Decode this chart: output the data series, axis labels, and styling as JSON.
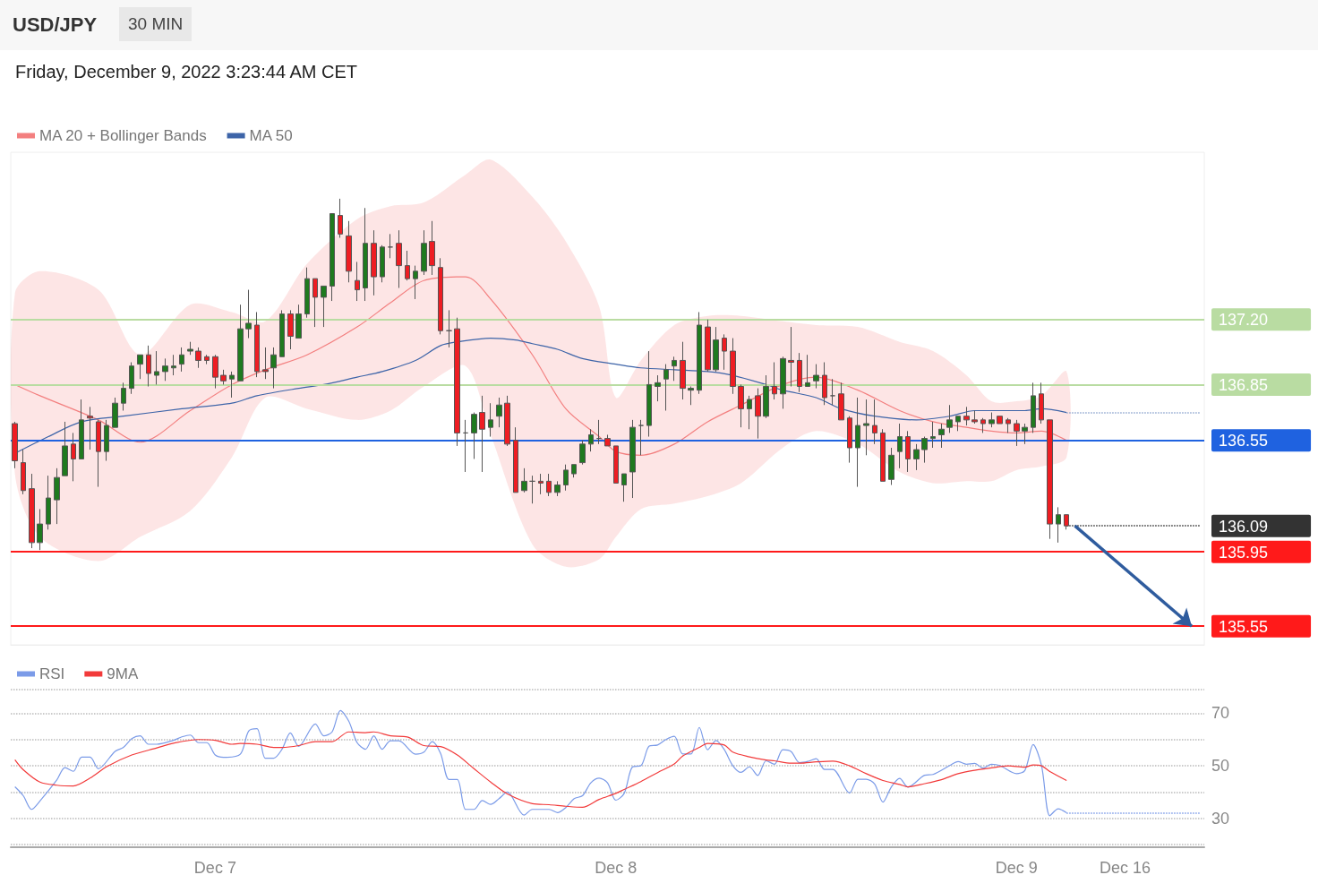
{
  "chart_data": [
    {
      "type": "candlestick",
      "title": "USD/JPY",
      "subtitle": "Friday, December 9, 2022 3:23:44 AM CET",
      "annotations": [
        "30 MIN"
      ],
      "categories": [
        null,
        null,
        null,
        null,
        null,
        null,
        null,
        null,
        null,
        null,
        null,
        null,
        null,
        null,
        null,
        null,
        null,
        null,
        null,
        null,
        null,
        null,
        null,
        null,
        null,
        null,
        null,
        null,
        null,
        null,
        null,
        null,
        null,
        null,
        null,
        null,
        null,
        null,
        null,
        null,
        null,
        null,
        null,
        null,
        null,
        null,
        null,
        null,
        null,
        null,
        null,
        null,
        null,
        null,
        null,
        null,
        null,
        null,
        null,
        null,
        null,
        null,
        null,
        null,
        null,
        null,
        null,
        null,
        null,
        null,
        null,
        null,
        null,
        null,
        null,
        null,
        null,
        null,
        null,
        null,
        null,
        null,
        null,
        null,
        null,
        null,
        null,
        null,
        null,
        null,
        null,
        null,
        null,
        null,
        null,
        null,
        null,
        null,
        null,
        null,
        null,
        null,
        null,
        null,
        null,
        null,
        null,
        null,
        null,
        null,
        null,
        null,
        null,
        null,
        null,
        null,
        null,
        null,
        null,
        null,
        null,
        null,
        null,
        null,
        null,
        null,
        null,
        null,
        null,
        null,
        null,
        null,
        null,
        null,
        null,
        null,
        null,
        null,
        null,
        null,
        null,
        null,
        null
      ],
      "ohlc": [
        [
          136.64,
          136.65,
          136.4,
          136.44
        ],
        [
          136.43,
          136.5,
          136.26,
          136.28
        ],
        [
          136.29,
          136.37,
          135.97,
          136.0
        ],
        [
          136.0,
          136.18,
          135.96,
          136.1
        ],
        [
          136.1,
          136.36,
          136.07,
          136.24
        ],
        [
          136.23,
          136.4,
          136.1,
          136.35
        ],
        [
          136.36,
          136.65,
          136.36,
          136.52
        ],
        [
          136.53,
          136.59,
          136.33,
          136.45
        ],
        [
          136.45,
          136.77,
          136.45,
          136.66
        ],
        [
          136.68,
          136.73,
          136.5,
          136.67
        ],
        [
          136.65,
          136.66,
          136.3,
          136.49
        ],
        [
          136.49,
          136.66,
          136.44,
          136.63
        ],
        [
          136.62,
          136.78,
          136.62,
          136.75
        ],
        [
          136.75,
          136.86,
          136.71,
          136.83
        ],
        [
          136.83,
          136.97,
          136.8,
          136.95
        ],
        [
          136.96,
          137.01,
          136.88,
          137.01
        ],
        [
          137.01,
          137.06,
          136.84,
          136.91
        ],
        [
          136.9,
          137.03,
          136.85,
          136.92
        ],
        [
          136.92,
          136.99,
          136.87,
          136.95
        ],
        [
          136.94,
          137.01,
          136.9,
          136.95
        ],
        [
          136.96,
          137.05,
          136.92,
          137.01
        ],
        [
          137.03,
          137.08,
          137.01,
          137.04
        ],
        [
          137.03,
          137.05,
          136.94,
          136.98
        ],
        [
          137.0,
          137.01,
          136.96,
          136.98
        ],
        [
          137.0,
          137.01,
          136.83,
          136.89
        ],
        [
          136.9,
          136.93,
          136.85,
          136.87
        ],
        [
          136.88,
          136.92,
          136.78,
          136.9
        ],
        [
          136.87,
          137.28,
          136.87,
          137.15
        ],
        [
          137.15,
          137.36,
          137.1,
          137.18
        ],
        [
          137.17,
          137.24,
          136.89,
          136.92
        ],
        [
          136.93,
          137.05,
          136.88,
          136.92
        ],
        [
          136.94,
          137.05,
          136.83,
          137.01
        ],
        [
          137.0,
          137.25,
          137.0,
          137.23
        ],
        [
          137.23,
          137.25,
          137.04,
          137.11
        ],
        [
          137.1,
          137.28,
          137.1,
          137.23
        ],
        [
          137.23,
          137.48,
          137.21,
          137.42
        ],
        [
          137.42,
          137.42,
          137.16,
          137.32
        ],
        [
          137.32,
          137.38,
          137.16,
          137.38
        ],
        [
          137.38,
          137.77,
          137.3,
          137.77
        ],
        [
          137.76,
          137.85,
          137.64,
          137.66
        ],
        [
          137.65,
          137.73,
          137.4,
          137.46
        ],
        [
          137.41,
          137.51,
          137.3,
          137.36
        ],
        [
          137.37,
          137.8,
          137.3,
          137.61
        ],
        [
          137.61,
          137.68,
          137.33,
          137.43
        ],
        [
          137.43,
          137.6,
          137.4,
          137.59
        ],
        [
          137.59,
          137.66,
          137.53,
          137.59
        ],
        [
          137.61,
          137.68,
          137.37,
          137.49
        ],
        [
          137.49,
          137.57,
          137.41,
          137.42
        ],
        [
          137.42,
          137.49,
          137.31,
          137.46
        ],
        [
          137.46,
          137.68,
          137.44,
          137.61
        ],
        [
          137.62,
          137.73,
          137.44,
          137.49
        ],
        [
          137.48,
          137.53,
          137.12,
          137.14
        ],
        [
          137.14,
          137.25,
          137.05,
          137.14
        ],
        [
          137.15,
          137.21,
          136.52,
          136.59
        ],
        [
          136.59,
          136.66,
          136.38,
          136.59
        ],
        [
          136.59,
          136.7,
          136.45,
          136.69
        ],
        [
          136.7,
          136.79,
          136.38,
          136.61
        ],
        [
          136.62,
          136.75,
          136.57,
          136.66
        ],
        [
          136.68,
          136.78,
          136.62,
          136.74
        ],
        [
          136.75,
          136.79,
          136.52,
          136.53
        ],
        [
          136.55,
          136.62,
          136.27,
          136.27
        ],
        [
          136.28,
          136.4,
          136.27,
          136.33
        ],
        [
          136.33,
          136.36,
          136.21,
          136.33
        ],
        [
          136.33,
          136.37,
          136.26,
          136.32
        ],
        [
          136.33,
          136.37,
          136.25,
          136.27
        ],
        [
          136.27,
          136.33,
          136.25,
          136.31
        ],
        [
          136.31,
          136.42,
          136.28,
          136.39
        ],
        [
          136.37,
          136.42,
          136.35,
          136.42
        ],
        [
          136.43,
          136.55,
          136.42,
          136.53
        ],
        [
          136.53,
          136.61,
          136.49,
          136.58
        ],
        [
          136.56,
          136.66,
          136.53,
          136.56
        ],
        [
          136.56,
          136.58,
          136.52,
          136.52
        ],
        [
          136.52,
          136.52,
          136.32,
          136.32
        ],
        [
          136.31,
          136.37,
          136.22,
          136.37
        ],
        [
          136.38,
          136.66,
          136.24,
          136.62
        ],
        [
          136.63,
          136.66,
          136.47,
          136.63
        ],
        [
          136.63,
          137.03,
          136.57,
          136.85
        ],
        [
          136.84,
          136.9,
          136.76,
          136.86
        ],
        [
          136.88,
          136.96,
          136.71,
          136.93
        ],
        [
          136.95,
          137.0,
          136.87,
          136.98
        ],
        [
          136.98,
          137.08,
          136.77,
          136.83
        ],
        [
          136.82,
          136.84,
          136.74,
          136.83
        ],
        [
          136.82,
          137.24,
          136.8,
          137.17
        ],
        [
          137.16,
          137.2,
          136.92,
          136.93
        ],
        [
          136.93,
          137.16,
          136.92,
          137.09
        ],
        [
          137.1,
          137.12,
          136.93,
          137.03
        ],
        [
          137.03,
          137.1,
          136.8,
          136.84
        ],
        [
          136.84,
          136.85,
          136.62,
          136.72
        ],
        [
          136.72,
          136.79,
          136.61,
          136.77
        ],
        [
          136.79,
          136.83,
          136.56,
          136.68
        ],
        [
          136.68,
          136.9,
          136.67,
          136.84
        ],
        [
          136.84,
          136.97,
          136.77,
          136.8
        ],
        [
          136.8,
          137.0,
          136.72,
          136.99
        ],
        [
          136.98,
          137.16,
          136.84,
          136.97
        ],
        [
          136.98,
          137.02,
          136.81,
          136.84
        ],
        [
          136.84,
          137.01,
          136.84,
          136.86
        ],
        [
          136.87,
          136.96,
          136.83,
          136.9
        ],
        [
          136.9,
          136.97,
          136.74,
          136.78
        ],
        [
          136.79,
          136.88,
          136.74,
          136.79
        ],
        [
          136.8,
          136.86,
          136.66,
          136.66
        ],
        [
          136.67,
          136.68,
          136.43,
          136.51
        ],
        [
          136.51,
          136.78,
          136.3,
          136.63
        ],
        [
          136.63,
          136.77,
          136.47,
          136.64
        ],
        [
          136.63,
          136.77,
          136.53,
          136.59
        ],
        [
          136.59,
          136.61,
          136.33,
          136.33
        ],
        [
          136.34,
          136.51,
          136.31,
          136.47
        ],
        [
          136.49,
          136.64,
          136.4,
          136.57
        ],
        [
          136.57,
          136.6,
          136.38,
          136.45
        ],
        [
          136.45,
          136.53,
          136.39,
          136.5
        ],
        [
          136.5,
          136.57,
          136.43,
          136.56
        ],
        [
          136.56,
          136.65,
          136.51,
          136.57
        ],
        [
          136.58,
          136.64,
          136.51,
          136.61
        ],
        [
          136.62,
          136.74,
          136.59,
          136.66
        ],
        [
          136.65,
          136.68,
          136.6,
          136.68
        ],
        [
          136.68,
          136.73,
          136.63,
          136.66
        ],
        [
          136.66,
          136.71,
          136.64,
          136.65
        ],
        [
          136.66,
          136.67,
          136.59,
          136.64
        ],
        [
          136.64,
          136.7,
          136.62,
          136.66
        ],
        [
          136.68,
          136.68,
          136.64,
          136.64
        ],
        [
          136.66,
          136.67,
          136.59,
          136.64
        ],
        [
          136.64,
          136.66,
          136.52,
          136.6
        ],
        [
          136.6,
          136.64,
          136.53,
          136.62
        ],
        [
          136.62,
          136.86,
          136.59,
          136.79
        ],
        [
          136.8,
          136.86,
          136.64,
          136.66
        ],
        [
          136.66,
          136.66,
          136.02,
          136.1
        ],
        [
          136.1,
          136.19,
          136.0,
          136.15
        ],
        [
          136.15,
          136.15,
          136.07,
          136.09
        ],
        null,
        null,
        null,
        null,
        null,
        null,
        null,
        null,
        null,
        null,
        null,
        null,
        null,
        null,
        null,
        null
      ],
      "series": [
        {
          "name": "MA 20 + Bollinger Bands",
          "type": "line",
          "color": "#f37f7f",
          "values": [
            136.85,
            null,
            null,
            136.79,
            null,
            null,
            null,
            null,
            null,
            null,
            136.66,
            null,
            null,
            null,
            null,
            136.54,
            null,
            null,
            null,
            null,
            null,
            136.71,
            null,
            null,
            null,
            null,
            136.85,
            null,
            null,
            null,
            136.93,
            null,
            null,
            null,
            null,
            137.01,
            null,
            null,
            null,
            null,
            null,
            137.16,
            null,
            null,
            null,
            137.29,
            null,
            null,
            null,
            137.41,
            null,
            null,
            null,
            null,
            137.43,
            null,
            null,
            137.31,
            null,
            null,
            null,
            null,
            137.01,
            null,
            null,
            null,
            136.72,
            null,
            null,
            null,
            136.57,
            null,
            136.49,
            null,
            null,
            136.47,
            null,
            null,
            null,
            136.53,
            null,
            null,
            null,
            136.65,
            null,
            null,
            null,
            136.74,
            null,
            null,
            null,
            null,
            136.85,
            null,
            null,
            null,
            136.89,
            null,
            null,
            null,
            null,
            136.82,
            null,
            null,
            null,
            null,
            136.71,
            null,
            null,
            null,
            136.65,
            null,
            null,
            null,
            136.62,
            null,
            null,
            136.6,
            null,
            null,
            136.59,
            null,
            null,
            136.6,
            null,
            null,
            136.55,
            null,
            null,
            null,
            null,
            null,
            null,
            null,
            null,
            null,
            null,
            null,
            null,
            null,
            null,
            null,
            null
          ],
          "upper": [
            137.34,
            null,
            null,
            137.46,
            null,
            null,
            null,
            null,
            null,
            null,
            137.36,
            null,
            null,
            null,
            null,
            137.01,
            null,
            null,
            null,
            null,
            null,
            137.28,
            null,
            null,
            null,
            null,
            137.24,
            null,
            null,
            null,
            137.19,
            null,
            null,
            null,
            null,
            137.5,
            null,
            null,
            null,
            null,
            null,
            137.74,
            null,
            null,
            null,
            137.81,
            null,
            null,
            null,
            137.83,
            null,
            null,
            null,
            null,
            137.98,
            null,
            null,
            138.06,
            null,
            null,
            null,
            null,
            137.86,
            null,
            null,
            null,
            137.62,
            null,
            null,
            null,
            137.27,
            null,
            136.78,
            null,
            null,
            136.98,
            null,
            null,
            null,
            137.17,
            null,
            null,
            null,
            137.22,
            null,
            null,
            null,
            137.22,
            null,
            null,
            null,
            null,
            137.19,
            null,
            null,
            null,
            137.17,
            null,
            null,
            null,
            null,
            137.16,
            null,
            null,
            null,
            null,
            137.08,
            null,
            null,
            null,
            137.03,
            null,
            null,
            null,
            136.9,
            null,
            null,
            136.76,
            null,
            null,
            136.76,
            null,
            null,
            136.79,
            null,
            null,
            136.92,
            null,
            null,
            null,
            null,
            null,
            null,
            null,
            null,
            null,
            null,
            null,
            null,
            null,
            null,
            null,
            null
          ],
          "lower": [
            136.37,
            null,
            null,
            136.03,
            null,
            null,
            null,
            null,
            null,
            null,
            135.9,
            null,
            null,
            null,
            null,
            136.03,
            null,
            null,
            null,
            null,
            null,
            136.17,
            null,
            null,
            null,
            null,
            136.46,
            null,
            null,
            null,
            136.78,
            null,
            null,
            null,
            null,
            136.72,
            null,
            null,
            null,
            null,
            null,
            136.66,
            null,
            null,
            null,
            136.71,
            null,
            null,
            null,
            136.84,
            null,
            null,
            null,
            null,
            136.95,
            null,
            null,
            136.58,
            null,
            null,
            null,
            null,
            135.99,
            null,
            null,
            null,
            135.87,
            null,
            null,
            null,
            135.91,
            null,
            136.03,
            null,
            null,
            136.18,
            null,
            null,
            null,
            136.21,
            null,
            null,
            null,
            136.25,
            null,
            null,
            null,
            136.32,
            null,
            null,
            null,
            null,
            136.51,
            null,
            null,
            null,
            136.6,
            null,
            null,
            null,
            null,
            136.53,
            null,
            null,
            null,
            null,
            136.38,
            null,
            null,
            null,
            136.32,
            null,
            null,
            null,
            136.33,
            null,
            null,
            136.33,
            null,
            null,
            136.39,
            null,
            null,
            136.41,
            null,
            null,
            136.46,
            null,
            null,
            null,
            null,
            null,
            null,
            null,
            null,
            null,
            null,
            null,
            null,
            null,
            null,
            null,
            null
          ]
        },
        {
          "name": "MA 50",
          "type": "line",
          "color": "#3d64a8",
          "values": [
            136.48,
            null,
            null,
            null,
            136.57,
            null,
            null,
            null,
            136.65,
            null,
            null,
            null,
            null,
            136.68,
            null,
            null,
            null,
            null,
            null,
            null,
            136.72,
            null,
            null,
            null,
            null,
            null,
            136.75,
            null,
            null,
            136.79,
            null,
            null,
            null,
            null,
            136.83,
            null,
            null,
            136.85,
            null,
            null,
            null,
            136.89,
            null,
            null,
            136.92,
            null,
            null,
            null,
            136.98,
            null,
            null,
            137.06,
            null,
            137.08,
            null,
            null,
            null,
            137.1,
            null,
            null,
            137.09,
            null,
            137.07,
            null,
            null,
            137.04,
            null,
            null,
            136.99,
            null,
            null,
            null,
            136.96,
            null,
            null,
            136.94,
            null,
            null,
            null,
            136.93,
            null,
            null,
            null,
            136.92,
            null,
            null,
            136.9,
            null,
            null,
            null,
            136.85,
            null,
            136.82,
            null,
            null,
            null,
            136.78,
            null,
            null,
            136.72,
            null,
            null,
            null,
            136.68,
            null,
            null,
            null,
            null,
            136.66,
            null,
            null,
            null,
            136.68,
            null,
            null,
            136.71,
            null,
            null,
            null,
            null,
            null,
            136.71,
            null,
            136.72,
            null,
            null,
            136.7,
            null,
            null,
            null,
            null,
            null,
            null,
            null,
            null,
            null,
            null,
            null,
            null,
            null,
            null,
            null,
            null
          ]
        }
      ],
      "ylim": [
        135.45,
        138.1
      ],
      "yticks": [
        {
          "value": 137.2,
          "label": "137.20"
        },
        {
          "value": 136.85,
          "label": "136.85"
        },
        {
          "value": 136.55,
          "label": "136.55"
        },
        {
          "value": 136.09,
          "label": "136.09"
        },
        {
          "value": 135.95,
          "label": "135.95"
        },
        {
          "value": 135.55,
          "label": "135.55"
        }
      ],
      "ref_lines": [
        {
          "axis": "y",
          "value": 137.2,
          "color": "#b9dca2",
          "line_style": "solid"
        },
        {
          "axis": "y",
          "value": 136.85,
          "color": "#b9dca2",
          "line_style": "solid"
        },
        {
          "axis": "y",
          "value": 136.55,
          "color": "#1f62e0",
          "line_style": "solid"
        },
        {
          "axis": "y",
          "value": 136.09,
          "color": "#333333",
          "line_style": "dotted"
        },
        {
          "axis": "y",
          "value": 136.7,
          "color": "#8fa6cf",
          "line_style": "dotted"
        },
        {
          "axis": "y",
          "value": 135.95,
          "color": "#ff1a1a",
          "line_style": "solid"
        },
        {
          "axis": "y",
          "value": 135.55,
          "color": "#ff1a1a",
          "line_style": "solid"
        }
      ],
      "legend": "top left",
      "tick_labels": "y",
      "marker": "none"
    },
    {
      "type": "line",
      "categories": [
        null,
        null,
        null,
        null,
        null,
        null,
        null,
        null,
        null,
        null,
        null,
        null,
        null,
        null,
        null,
        null,
        null,
        null,
        null,
        null,
        null,
        null,
        null,
        null,
        "Dec 7",
        null,
        null,
        null,
        null,
        null,
        null,
        null,
        null,
        null,
        null,
        null,
        null,
        null,
        null,
        null,
        null,
        null,
        null,
        null,
        null,
        null,
        null,
        null,
        null,
        null,
        null,
        null,
        null,
        null,
        null,
        null,
        null,
        null,
        null,
        null,
        null,
        null,
        null,
        null,
        null,
        null,
        null,
        null,
        null,
        null,
        null,
        null,
        "Dec 8",
        null,
        null,
        null,
        null,
        null,
        null,
        null,
        null,
        null,
        null,
        null,
        null,
        null,
        null,
        null,
        null,
        null,
        null,
        null,
        null,
        null,
        null,
        null,
        null,
        null,
        null,
        null,
        null,
        null,
        null,
        null,
        null,
        null,
        null,
        null,
        null,
        null,
        null,
        null,
        null,
        null,
        null,
        null,
        null,
        null,
        null,
        null,
        "Dec 9",
        null,
        null,
        null,
        null,
        null,
        null,
        null,
        null,
        null,
        null,
        null,
        null,
        "Dec 16",
        null,
        null,
        null,
        null,
        null,
        null,
        null,
        null,
        null
      ],
      "series": [
        {
          "name": "RSI",
          "color": "#7b9be8",
          "values": [
            42.0,
            38.6,
            33.4,
            36.6,
            null,
            44.5,
            49.3,
            47.9,
            53.3,
            53.3,
            48.9,
            null,
            55.5,
            57.0,
            60.3,
            61.4,
            58.2,
            58.2,
            null,
            59.7,
            61.0,
            61.7,
            58.8,
            58.8,
            54.1,
            53.2,
            null,
            54.4,
            63.2,
            64.1,
            52.9,
            52.9,
            56.3,
            62.5,
            57.4,
            null,
            65.9,
            61.4,
            62.9,
            71.0,
            67.0,
            58.8,
            56.3,
            61.4,
            56.3,
            59.5,
            59.5,
            null,
            54.4,
            55.2,
            59.2,
            54.7,
            44.8,
            44.8,
            33.4,
            33.4,
            36.8,
            35.3,
            37.5,
            40.0,
            null,
            31.2,
            33.4,
            null,
            33.4,
            32.2,
            34.1,
            37.5,
            38.6,
            43.5,
            45.3,
            43.5,
            36.9,
            39.5,
            49.6,
            50.0,
            57.5,
            57.9,
            60.0,
            61.2,
            54.5,
            54.5,
            64.6,
            56.1,
            59.6,
            56.1,
            50.1,
            47.5,
            49.6,
            46.3,
            51.9,
            50.6,
            56.1,
            55.4,
            51.2,
            51.7,
            52.7,
            48.6,
            48.6,
            null,
            39.6,
            44.9,
            44.9,
            43.1,
            36.2,
            41.9,
            45.2,
            41.9,
            null,
            46.4,
            46.7,
            null,
            50.1,
            51.6,
            50.6,
            50.9,
            49.1,
            50.6,
            50.1,
            null,
            47.0,
            48.2,
            58.1,
            50.1,
            31.0,
            33.6,
            32.1,
            null,
            null,
            null,
            null,
            null,
            null,
            null,
            null,
            null,
            null,
            null,
            null,
            null,
            null,
            null,
            null
          ]
        },
        {
          "name": "9MA",
          "color": "#f23a3a",
          "values": [
            52.3,
            48.5,
            null,
            43.8,
            null,
            42.6,
            null,
            42.3,
            null,
            45.3,
            null,
            49.7,
            null,
            null,
            54.1,
            null,
            null,
            56.8,
            null,
            58.6,
            null,
            null,
            60.0,
            null,
            59.7,
            null,
            58.2,
            58.5,
            null,
            58.2,
            null,
            57.0,
            57.0,
            null,
            57.7,
            null,
            59.2,
            null,
            59.2,
            null,
            62.9,
            null,
            62.6,
            62.9,
            null,
            61.4,
            null,
            61.0,
            null,
            57.7,
            null,
            57.3,
            null,
            54.1,
            null,
            48.9,
            null,
            43.8,
            null,
            39.3,
            null,
            null,
            35.6,
            null,
            35.2,
            null,
            34.6,
            null,
            34.2,
            null,
            37.2,
            null,
            39.5,
            41.0,
            null,
            44.0,
            null,
            47.4,
            null,
            50.7,
            53.7,
            null,
            57.0,
            58.5,
            null,
            57.9,
            55.2,
            null,
            53.4,
            null,
            52.2,
            51.9,
            null,
            51.0,
            51.0,
            null,
            51.5,
            null,
            51.8,
            null,
            50.0,
            null,
            47.0,
            null,
            44.4,
            null,
            42.9,
            42.0,
            null,
            43.2,
            null,
            44.7,
            null,
            47.0,
            null,
            48.3,
            null,
            49.2,
            null,
            50.0,
            null,
            49.5,
            50.3,
            50.0,
            47.8,
            null,
            44.4,
            null,
            null,
            null,
            null,
            null,
            null,
            null,
            null,
            null,
            null,
            null,
            null,
            null,
            null,
            null,
            null
          ]
        }
      ],
      "ylim": [
        19,
        79
      ],
      "yticks": [
        30,
        50,
        70
      ],
      "grid": "y",
      "ref_lines": [
        {
          "axis": "y",
          "value": 32.1,
          "color": "#7b9be8",
          "line_style": "dotted"
        }
      ],
      "legend": "top left",
      "marker": "none"
    }
  ]
}
